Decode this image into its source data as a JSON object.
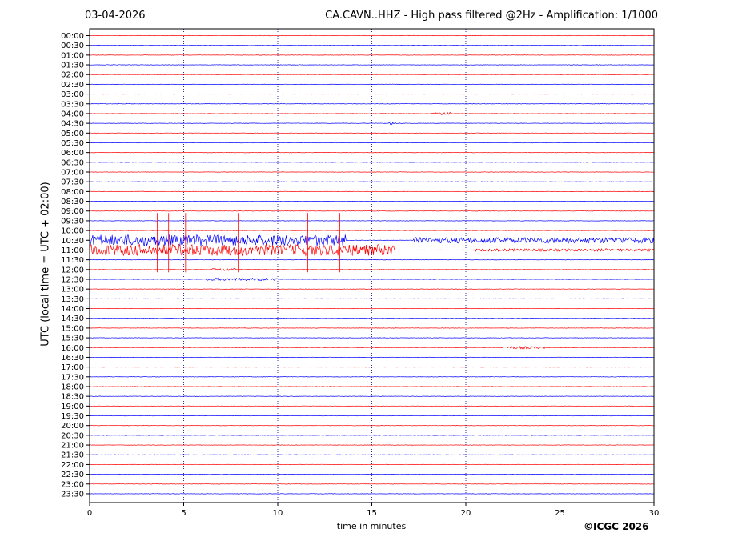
{
  "header": {
    "date": "03-04-2026",
    "title": "CA.CAVN..HHZ - High pass filtered @2Hz - Amplification: 1/1000"
  },
  "footer": {
    "copyright": "©ICGC 2026"
  },
  "colors": {
    "trace_even": "#ff0000",
    "trace_odd": "#0000ff",
    "grid": "#00007f",
    "axes": "#000000"
  },
  "chart_data": {
    "type": "helicorder",
    "xlabel": "time in minutes",
    "ylabel": "UTC (local time = UTC + 02:00)",
    "xlim": [
      0,
      30
    ],
    "x_ticks": [
      0,
      5,
      10,
      15,
      20,
      25,
      30
    ],
    "vertical_grid": "dotted at every x tick",
    "row_labels": [
      "00:00",
      "00:30",
      "01:00",
      "01:30",
      "02:00",
      "02:30",
      "03:00",
      "03:30",
      "04:00",
      "04:30",
      "05:00",
      "05:30",
      "06:00",
      "06:30",
      "07:00",
      "07:30",
      "08:00",
      "08:30",
      "09:00",
      "09:30",
      "10:00",
      "10:30",
      "11:00",
      "11:30",
      "12:00",
      "12:30",
      "13:00",
      "13:30",
      "14:00",
      "14:30",
      "15:00",
      "15:30",
      "16:00",
      "16:30",
      "17:00",
      "17:30",
      "18:00",
      "18:30",
      "19:00",
      "19:30",
      "20:00",
      "20:30",
      "21:00",
      "21:30",
      "22:00",
      "22:30",
      "23:00",
      "23:30"
    ],
    "row_color_pattern": "alternating red (even rows) / blue (odd rows)",
    "events": [
      {
        "row": "10:30",
        "start_min": 0.0,
        "end_min": 13.6,
        "amplitude": "high",
        "note": "spikes near 3.6, 4.2, 5.1, 7.9, 11.6, 13.3 min"
      },
      {
        "row": "10:30",
        "start_min": 17.2,
        "end_min": 30.0,
        "amplitude": "medium"
      },
      {
        "row": "11:00",
        "start_min": 0.0,
        "end_min": 16.2,
        "amplitude": "high"
      },
      {
        "row": "11:00",
        "start_min": 20.5,
        "end_min": 30.0,
        "amplitude": "low"
      },
      {
        "row": "12:00",
        "start_min": 6.5,
        "end_min": 7.8,
        "amplitude": "low"
      },
      {
        "row": "12:30",
        "start_min": 6.2,
        "end_min": 10.0,
        "amplitude": "low"
      },
      {
        "row": "16:00",
        "start_min": 21.9,
        "end_min": 24.2,
        "amplitude": "low"
      },
      {
        "row": "04:30",
        "start_min": 15.9,
        "end_min": 16.4,
        "amplitude": "low"
      },
      {
        "row": "04:00",
        "start_min": 18.2,
        "end_min": 19.2,
        "amplitude": "low"
      }
    ]
  }
}
